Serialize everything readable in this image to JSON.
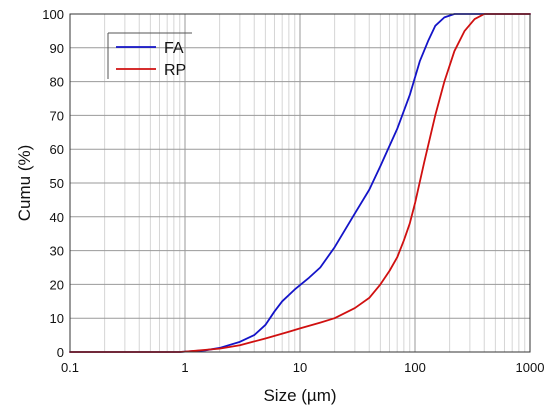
{
  "chart_data": {
    "type": "line",
    "title": "",
    "xlabel": "Size (µm)",
    "ylabel": "Cumu (%)",
    "xscale": "log",
    "xlim": [
      0.1,
      1000
    ],
    "ylim": [
      0,
      100
    ],
    "x_ticks": [
      0.1,
      1,
      10,
      100,
      1000
    ],
    "x_tick_labels": [
      "0.1",
      "1",
      "10",
      "100",
      "1000"
    ],
    "y_ticks": [
      0,
      10,
      20,
      30,
      40,
      50,
      60,
      70,
      80,
      90,
      100
    ],
    "y_tick_labels": [
      "0",
      "10",
      "20",
      "30",
      "40",
      "50",
      "60",
      "70",
      "80",
      "90",
      "100"
    ],
    "grid": true,
    "legend_position": "top-left",
    "series": [
      {
        "name": "FA",
        "color": "#1414c8",
        "points": [
          [
            0.1,
            0
          ],
          [
            0.5,
            0
          ],
          [
            0.9,
            0
          ],
          [
            1,
            0.1
          ],
          [
            1.5,
            0.5
          ],
          [
            2,
            1.2
          ],
          [
            3,
            3
          ],
          [
            4,
            5
          ],
          [
            5,
            8
          ],
          [
            6,
            12
          ],
          [
            7,
            15
          ],
          [
            9,
            18.5
          ],
          [
            12,
            22
          ],
          [
            15,
            25
          ],
          [
            20,
            31
          ],
          [
            30,
            41
          ],
          [
            40,
            48
          ],
          [
            50,
            55
          ],
          [
            70,
            66
          ],
          [
            90,
            76
          ],
          [
            110,
            86
          ],
          [
            130,
            92
          ],
          [
            150,
            96.5
          ],
          [
            180,
            99
          ],
          [
            220,
            100
          ],
          [
            300,
            100
          ],
          [
            1000,
            100
          ]
        ]
      },
      {
        "name": "RP",
        "color": "#d01010",
        "points": [
          [
            0.1,
            0
          ],
          [
            0.5,
            0
          ],
          [
            0.9,
            0
          ],
          [
            1,
            0.1
          ],
          [
            2,
            1
          ],
          [
            3,
            2
          ],
          [
            5,
            4
          ],
          [
            8,
            6
          ],
          [
            10,
            7
          ],
          [
            15,
            8.7
          ],
          [
            20,
            10
          ],
          [
            30,
            13
          ],
          [
            40,
            16
          ],
          [
            50,
            20
          ],
          [
            60,
            24
          ],
          [
            70,
            28
          ],
          [
            80,
            33
          ],
          [
            90,
            38
          ],
          [
            100,
            44
          ],
          [
            120,
            56
          ],
          [
            150,
            70
          ],
          [
            180,
            80
          ],
          [
            220,
            89
          ],
          [
            270,
            95
          ],
          [
            330,
            98.5
          ],
          [
            400,
            100
          ],
          [
            1000,
            100
          ]
        ]
      }
    ]
  }
}
